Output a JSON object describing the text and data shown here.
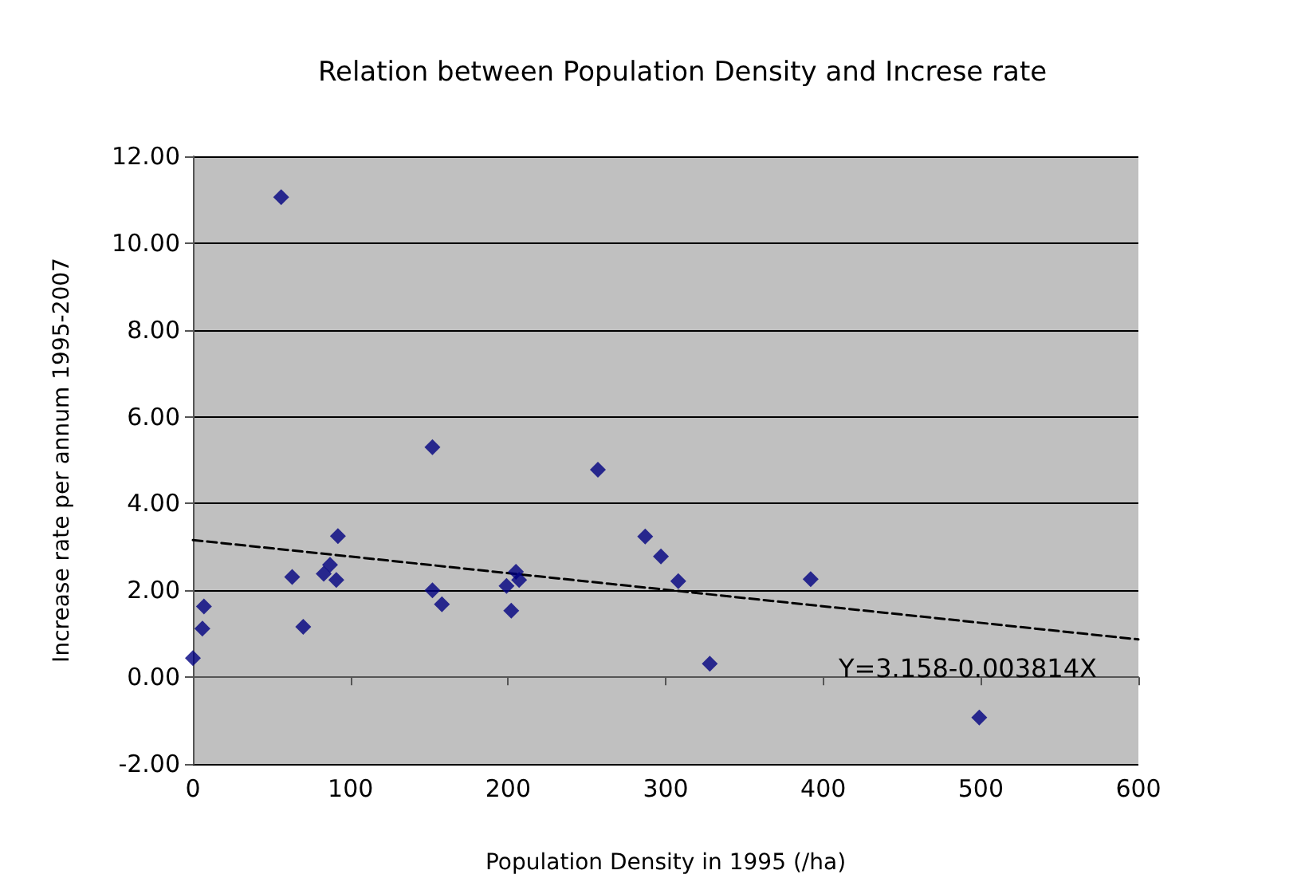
{
  "chart_data": {
    "type": "scatter",
    "title": "Relation between Population Density and Increse rate",
    "xlabel": "Population Density in 1995 (/ha)",
    "ylabel": "Increase rate per annum 1995-2007",
    "series": [
      {
        "color": "#000080",
        "marker": "diamond",
        "x": [
          0,
          6,
          7,
          56,
          63,
          70,
          83,
          87,
          91,
          92,
          152,
          152,
          158,
          199,
          202,
          205,
          207,
          257,
          287,
          297,
          308,
          328,
          392,
          499
        ],
        "values": [
          0.44,
          1.12,
          1.63,
          11.06,
          2.31,
          1.16,
          2.38,
          2.59,
          2.24,
          3.25,
          5.3,
          2.0,
          1.68,
          2.1,
          1.53,
          2.43,
          2.24,
          4.78,
          3.24,
          2.78,
          2.21,
          0.31,
          2.26,
          -0.93
        ]
      },
      {
        "type": "line",
        "color": "#000000",
        "line_style": "dashed",
        "marker": "none",
        "x": [
          0,
          600
        ],
        "values": [
          3.16,
          0.87
        ]
      }
    ],
    "xlim": [
      0,
      600
    ],
    "xticks": [
      0,
      100,
      200,
      300,
      400,
      500,
      600
    ],
    "ylim": [
      -2,
      12
    ],
    "yticks": [
      {
        "value": -2,
        "label": "-2.00"
      },
      {
        "value": 0,
        "label": "0.00"
      },
      {
        "value": 2,
        "label": "2.00"
      },
      {
        "value": 4,
        "label": "4.00"
      },
      {
        "value": 6,
        "label": "6.00"
      },
      {
        "value": 8,
        "label": "8.00"
      },
      {
        "value": 10,
        "label": "10.00"
      },
      {
        "value": 12,
        "label": "12.00"
      }
    ],
    "grid": "y",
    "annotations": [
      "Y=3.158-0.003814X"
    ]
  }
}
